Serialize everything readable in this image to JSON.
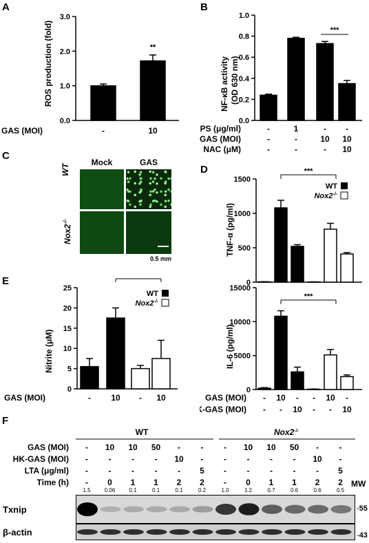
{
  "panels": {
    "A": {
      "letter": "A",
      "ylabel": "ROS production (fold)",
      "yticks": [
        "0.0",
        "1.0",
        "2.0",
        "3.0"
      ],
      "xrow_label": "GAS (MOI)",
      "xrow_values": [
        "-",
        "10"
      ],
      "sig": "**"
    },
    "B": {
      "letter": "B",
      "ylabel_line1": "NF-κB activity",
      "ylabel_line2": "(OD 630 nm)",
      "yticks": [
        "0.0",
        "0.2",
        "0.4",
        "0.6",
        "0.8",
        "1.0"
      ],
      "rows": [
        {
          "label": "LPS (μg/ml)",
          "values": [
            "-",
            "1",
            "-",
            "-"
          ]
        },
        {
          "label": "GAS (MOI)",
          "values": [
            "-",
            "-",
            "10",
            "10"
          ]
        },
        {
          "label": "NAC (μM)",
          "values": [
            "-",
            "-",
            "-",
            "10"
          ]
        }
      ],
      "sig": "***"
    },
    "C": {
      "letter": "C",
      "col_labels": [
        "Mock",
        "GAS"
      ],
      "row_labels": [
        "WT",
        "Nox2-/-"
      ],
      "scale_bar": "0.5 mm"
    },
    "D": {
      "letter": "D",
      "tnf_ylabel": "TNF-α (pg/ml)",
      "tnf_yticks": [
        "0",
        "500",
        "1000",
        "1500"
      ],
      "il6_ylabel": "IL-6 (pg/ml)",
      "il6_yticks": [
        "0",
        "5000",
        "10000",
        "15000"
      ],
      "legend_wt": "WT",
      "legend_nox": "Nox2-/-",
      "sig": "***",
      "rows": [
        {
          "label": "GAS (MOI)",
          "values": [
            "-",
            "10",
            "-",
            "-",
            "10",
            "-"
          ]
        },
        {
          "label": "HK-GAS (MOI)",
          "values": [
            "-",
            "-",
            "10",
            "-",
            "-",
            "10"
          ]
        }
      ]
    },
    "E": {
      "letter": "E",
      "ylabel": "Nitrite (μM)",
      "yticks": [
        "0",
        "5",
        "10",
        "15",
        "20",
        "25"
      ],
      "legend_wt": "WT",
      "legend_nox": "Nox2-/-",
      "sig": "**",
      "xrow_label": "GAS (MOI)",
      "xrow_values": [
        "-",
        "10",
        "-",
        "10"
      ]
    },
    "F": {
      "letter": "F",
      "group_wt": "WT",
      "group_nox": "Nox2-/-",
      "rows": [
        {
          "label": "GAS (MOI)",
          "values": [
            "-",
            "10",
            "10",
            "50",
            "-",
            "-",
            "-",
            "10",
            "10",
            "50",
            "-",
            "-"
          ]
        },
        {
          "label": "HK-GAS (MOI)",
          "values": [
            "-",
            "-",
            "-",
            "-",
            "10",
            "-",
            "-",
            "-",
            "-",
            "-",
            "10",
            "-"
          ]
        },
        {
          "label": "LTA (μg/ml)",
          "values": [
            "-",
            "-",
            "-",
            "-",
            "-",
            "5",
            "-",
            "-",
            "-",
            "-",
            "-",
            "5"
          ]
        },
        {
          "label": "Time (h)",
          "values": [
            "-",
            "0",
            "1",
            "1",
            "2",
            "2",
            "-",
            "0",
            "1",
            "1",
            "2",
            "2"
          ]
        }
      ],
      "mw_label": "MW",
      "quant": [
        "1.5",
        "0.06",
        "0.1",
        "0.1",
        "0.1",
        "0.2",
        "1.0",
        "1.2",
        "0.7",
        "0.6",
        "0.6",
        "0.5"
      ],
      "blot1_label": "Txnip",
      "blot1_mw": "55",
      "blot2_label": "β-actin",
      "blot2_mw": "43"
    }
  },
  "chart_data": [
    {
      "type": "bar",
      "panel": "A",
      "categories": [
        "-",
        "10"
      ],
      "values": [
        1.0,
        1.72
      ],
      "errors": [
        0.05,
        0.17
      ],
      "ylabel": "ROS production (fold)",
      "ylim": [
        0,
        3.0
      ]
    },
    {
      "type": "bar",
      "panel": "B",
      "categories": [
        "1",
        "2",
        "3",
        "4"
      ],
      "values": [
        0.24,
        0.78,
        0.73,
        0.35
      ],
      "errors": [
        0.01,
        0.01,
        0.02,
        0.03
      ],
      "ylabel": "NF-κB activity (OD 630 nm)",
      "ylim": [
        0,
        1.0
      ]
    },
    {
      "type": "bar",
      "panel": "D-TNF",
      "categories": [
        "1",
        "2",
        "3",
        "4",
        "5",
        "6"
      ],
      "values": [
        5,
        1080,
        520,
        3,
        770,
        410
      ],
      "errors": [
        2,
        110,
        25,
        2,
        85,
        20
      ],
      "groups": [
        "WT",
        "WT",
        "WT",
        "Nox2-/-",
        "Nox2-/-",
        "Nox2-/-"
      ],
      "ylabel": "TNF-α (pg/ml)",
      "ylim": [
        0,
        1500
      ]
    },
    {
      "type": "bar",
      "panel": "D-IL6",
      "categories": [
        "1",
        "2",
        "3",
        "4",
        "5",
        "6"
      ],
      "values": [
        200,
        10800,
        2600,
        50,
        5100,
        1900
      ],
      "errors": [
        80,
        800,
        700,
        30,
        800,
        250
      ],
      "groups": [
        "WT",
        "WT",
        "WT",
        "Nox2-/-",
        "Nox2-/-",
        "Nox2-/-"
      ],
      "ylabel": "IL-6 (pg/ml)",
      "ylim": [
        0,
        15000
      ]
    },
    {
      "type": "bar",
      "panel": "E",
      "categories": [
        "1",
        "2",
        "3",
        "4"
      ],
      "values": [
        5.5,
        17.5,
        5.0,
        7.5
      ],
      "errors": [
        2.0,
        2.5,
        0.8,
        4.5
      ],
      "groups": [
        "WT",
        "WT",
        "Nox2-/-",
        "Nox2-/-"
      ],
      "ylabel": "Nitrite (μM)",
      "ylim": [
        0,
        25
      ]
    }
  ],
  "colors": {
    "filled": "#000000",
    "open": "#ffffff"
  }
}
